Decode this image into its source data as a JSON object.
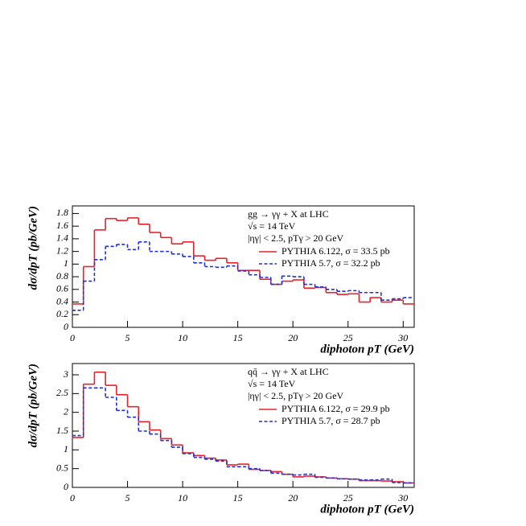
{
  "chart_data": [
    {
      "type": "histogram",
      "bins": [
        0,
        1,
        2,
        3,
        4,
        5,
        6,
        7,
        8,
        9,
        10,
        11,
        12,
        13,
        14,
        15,
        16,
        17,
        18,
        19,
        20,
        21,
        22,
        23,
        24,
        25,
        26,
        27,
        28,
        29,
        30,
        31
      ],
      "series": [
        {
          "name": "PYTHIA 6.122, σ = 33.5 pb",
          "color": "#e8202a",
          "dash": false,
          "values": [
            0.37,
            0.96,
            1.54,
            1.72,
            1.69,
            1.73,
            1.63,
            1.5,
            1.42,
            1.32,
            1.35,
            1.13,
            1.06,
            1.09,
            1.02,
            0.9,
            0.9,
            0.76,
            0.68,
            0.73,
            0.75,
            0.62,
            0.63,
            0.55,
            0.52,
            0.53,
            0.4,
            0.47,
            0.4,
            0.43,
            0.37
          ]
        },
        {
          "name": "PYTHIA 5.7, σ = 32.2 pb",
          "color": "#1f2fd8",
          "dash": true,
          "values": [
            0.27,
            0.73,
            1.07,
            1.28,
            1.31,
            1.23,
            1.35,
            1.2,
            1.2,
            1.16,
            1.12,
            1.02,
            0.96,
            0.95,
            0.97,
            0.89,
            0.83,
            0.79,
            0.68,
            0.81,
            0.8,
            0.68,
            0.64,
            0.6,
            0.57,
            0.58,
            0.55,
            0.55,
            0.43,
            0.45,
            0.47
          ]
        }
      ],
      "annotations": [
        "gg → γγ + X at LHC",
        "√s = 14 TeV",
        "|ηγ| < 2.5, pTγ > 20 GeV"
      ],
      "x_label": "diphoton pT (GeV)",
      "y_label": "dσ/dpT (pb/GeV)",
      "xlim": [
        0,
        31
      ],
      "xticks": [
        0,
        5,
        10,
        15,
        20,
        25,
        30
      ],
      "ylim": [
        0,
        1.92
      ],
      "yticks": [
        0,
        0.2,
        0.4,
        0.6,
        0.8,
        1,
        1.2,
        1.4,
        1.6,
        1.8
      ]
    },
    {
      "type": "histogram",
      "bins": [
        0,
        1,
        2,
        3,
        4,
        5,
        6,
        7,
        8,
        9,
        10,
        11,
        12,
        13,
        14,
        15,
        16,
        17,
        18,
        19,
        20,
        21,
        22,
        23,
        24,
        25,
        26,
        27,
        28,
        29,
        30,
        31
      ],
      "series": [
        {
          "name": "PYTHIA 6.122, σ = 29.9 pb",
          "color": "#e8202a",
          "dash": false,
          "values": [
            1.33,
            2.75,
            3.07,
            2.72,
            2.47,
            2.15,
            1.75,
            1.53,
            1.3,
            1.13,
            0.92,
            0.85,
            0.78,
            0.73,
            0.6,
            0.62,
            0.48,
            0.45,
            0.42,
            0.35,
            0.28,
            0.3,
            0.28,
            0.25,
            0.23,
            0.22,
            0.18,
            0.18,
            0.17,
            0.15,
            0.12
          ]
        },
        {
          "name": "PYTHIA 5.7, σ = 28.7 pb",
          "color": "#1f2fd8",
          "dash": true,
          "values": [
            1.38,
            2.65,
            2.65,
            2.4,
            2.05,
            1.87,
            1.5,
            1.42,
            1.25,
            1.07,
            0.9,
            0.8,
            0.75,
            0.7,
            0.55,
            0.55,
            0.5,
            0.45,
            0.38,
            0.35,
            0.33,
            0.35,
            0.27,
            0.25,
            0.23,
            0.22,
            0.2,
            0.2,
            0.22,
            0.13,
            0.12
          ]
        }
      ],
      "annotations": [
        "qq̄ → γγ + X at LHC",
        "√s = 14 TeV",
        "|ηγ| < 2.5, pTγ > 20 GeV"
      ],
      "x_label": "diphoton pT (GeV)",
      "y_label": "dσ/dpT (pb/GeV)",
      "xlim": [
        0,
        31
      ],
      "xticks": [
        0,
        5,
        10,
        15,
        20,
        25,
        30
      ],
      "ylim": [
        0,
        3.3
      ],
      "yticks": [
        0,
        0.5,
        1,
        1.5,
        2,
        2.5,
        3
      ]
    }
  ]
}
